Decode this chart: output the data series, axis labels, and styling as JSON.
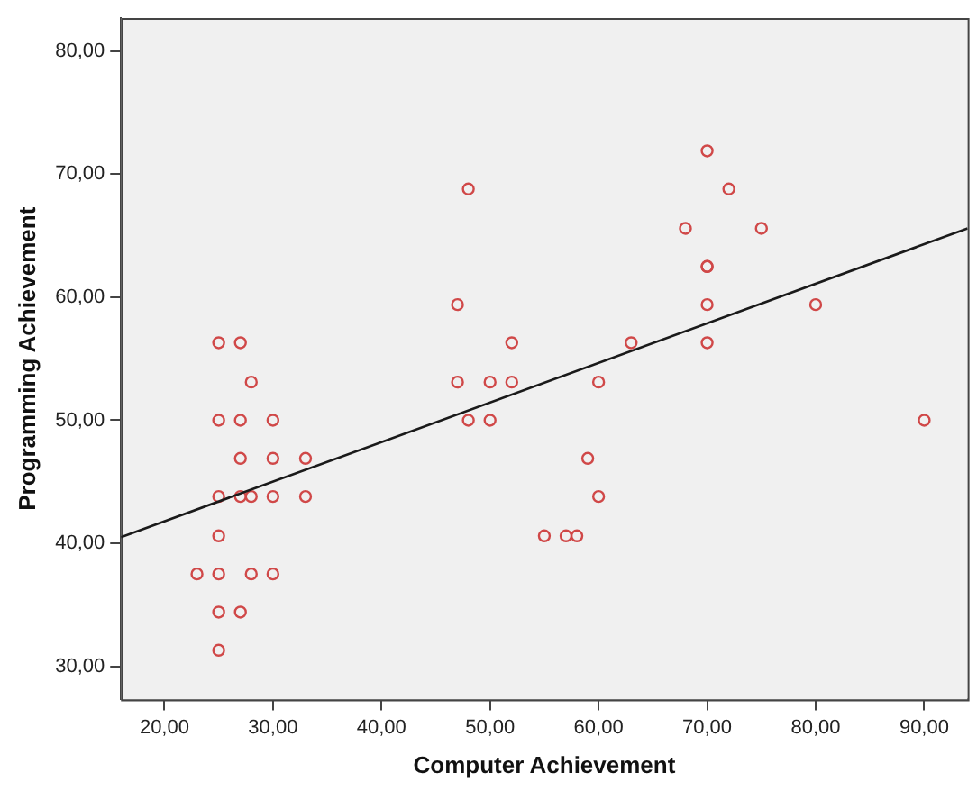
{
  "chart_data": {
    "type": "scatter",
    "xlabel": "Computer Achievement",
    "ylabel": "Programming Achievement",
    "xlim": [
      16,
      94
    ],
    "ylim": [
      27.3,
      82.7
    ],
    "xticks": [
      {
        "value": 20,
        "label": "20,00"
      },
      {
        "value": 30,
        "label": "30,00"
      },
      {
        "value": 40,
        "label": "40,00"
      },
      {
        "value": 50,
        "label": "50,00"
      },
      {
        "value": 60,
        "label": "60,00"
      },
      {
        "value": 70,
        "label": "70,00"
      },
      {
        "value": 80,
        "label": "80,00"
      },
      {
        "value": 90,
        "label": "90,00"
      }
    ],
    "yticks": [
      {
        "value": 30,
        "label": "30,00"
      },
      {
        "value": 40,
        "label": "40,00"
      },
      {
        "value": 50,
        "label": "50,00"
      },
      {
        "value": 60,
        "label": "60,00"
      },
      {
        "value": 70,
        "label": "70,00"
      },
      {
        "value": 80,
        "label": "80,00"
      }
    ],
    "grid": false,
    "legend": false,
    "series": [
      {
        "type": "scatter",
        "color": "#d04848",
        "marker": "circle",
        "x": [
          25,
          27,
          28,
          25,
          27,
          30,
          27,
          30,
          33,
          25,
          27,
          28,
          30,
          33,
          25,
          23,
          25,
          28,
          30,
          25,
          27,
          25,
          48,
          47,
          52,
          63,
          47,
          50,
          52,
          60,
          48,
          50,
          59,
          60,
          55,
          57,
          58,
          70,
          72,
          68,
          75,
          70,
          70,
          70,
          80,
          70,
          90
        ],
        "values": [
          56.3,
          56.3,
          53.1,
          50,
          50,
          50,
          46.9,
          46.9,
          46.9,
          43.8,
          43.8,
          43.8,
          43.8,
          43.8,
          40.6,
          37.5,
          37.5,
          37.5,
          37.5,
          34.4,
          34.4,
          31.3,
          68.8,
          59.4,
          56.3,
          56.3,
          53.1,
          53.1,
          53.1,
          53.1,
          50,
          50,
          46.9,
          43.8,
          40.6,
          40.6,
          40.6,
          71.9,
          68.8,
          65.6,
          65.6,
          62.5,
          62.5,
          59.4,
          59.4,
          56.3,
          50
        ]
      },
      {
        "type": "line",
        "color": "#1a1a1a",
        "marker": "none",
        "line_style": "solid",
        "x": [
          16,
          94
        ],
        "values": [
          40.5,
          65.6
        ]
      }
    ]
  }
}
